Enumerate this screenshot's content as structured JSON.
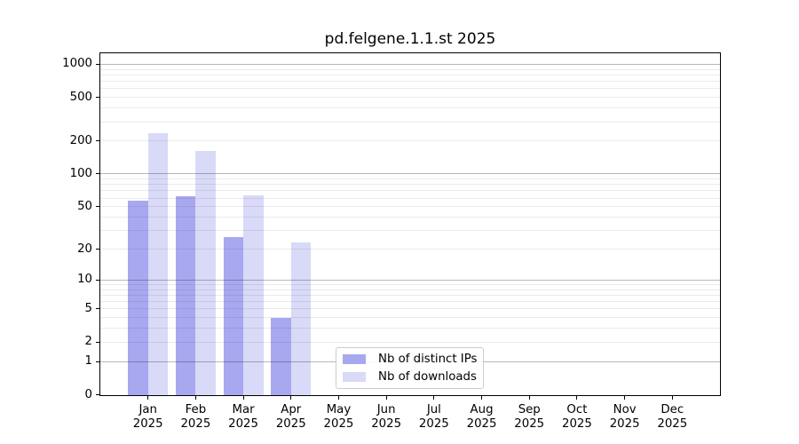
{
  "chart_data": {
    "type": "bar",
    "title": "pd.felgene.1.1.st 2025",
    "categories": [
      "Jan 2025",
      "Feb 2025",
      "Mar 2025",
      "Apr 2025",
      "May 2025",
      "Jun 2025",
      "Jul 2025",
      "Aug 2025",
      "Sep 2025",
      "Oct 2025",
      "Nov 2025",
      "Dec 2025"
    ],
    "series": [
      {
        "name": "Nb of distinct IPs",
        "color": "#a8a8f0",
        "values": [
          57,
          62,
          26,
          4,
          0,
          0,
          0,
          0,
          0,
          0,
          0,
          0
        ]
      },
      {
        "name": "Nb of downloads",
        "color": "#d9d9f8",
        "values": [
          235,
          162,
          63,
          23,
          0,
          0,
          0,
          0,
          0,
          0,
          0,
          0
        ]
      }
    ],
    "yscale": "log1p",
    "ylim": [
      0,
      1270
    ],
    "yticks": [
      0,
      1,
      2,
      5,
      10,
      20,
      50,
      100,
      200,
      500,
      1000
    ],
    "decade_gridlines": [
      1,
      10,
      100,
      1000
    ],
    "minor_gridlines": [
      2,
      3,
      4,
      5,
      6,
      7,
      8,
      9,
      20,
      30,
      40,
      50,
      60,
      70,
      80,
      90,
      200,
      300,
      400,
      500,
      600,
      700,
      800,
      900
    ],
    "grid": true,
    "legend": {
      "location": "lower center"
    },
    "colors": {
      "grid_decade": "rgba(0,0,0,0.28)",
      "grid_minor": "rgba(0,0,0,0.08)",
      "spine": "#000000"
    }
  }
}
